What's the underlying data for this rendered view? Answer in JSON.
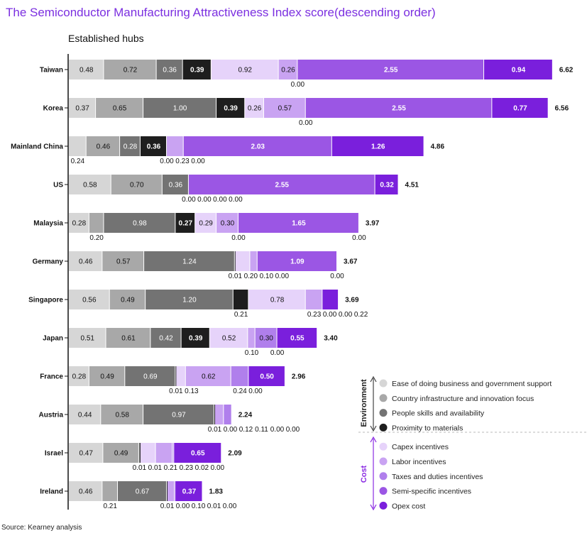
{
  "title": "The Semiconductor Manufacturing Attractiveness Index score(descending order)",
  "section_label": "Established hubs",
  "source": "Source: Kearney analysis",
  "legend": {
    "groups": [
      {
        "name": "Environment",
        "color": "#444444"
      },
      {
        "name": "Cost",
        "color": "#8A2BE2"
      }
    ]
  },
  "chart_data": {
    "type": "bar",
    "orientation": "horizontal",
    "stacked": true,
    "title": "The Semiconductor Manufacturing Attractiveness Index score(descending order)",
    "categories": [
      "Taiwan",
      "Korea",
      "Mainland China",
      "US",
      "Malaysia",
      "Germany",
      "Singapore",
      "Japan",
      "France",
      "Austria",
      "Israel",
      "Ireland"
    ],
    "series": [
      {
        "name": "Ease of doing business and government support",
        "group": "Environment",
        "color": "#D6D6D6",
        "values": [
          0.48,
          0.37,
          0.24,
          0.58,
          0.28,
          0.46,
          0.56,
          0.51,
          0.28,
          0.44,
          0.47,
          0.46
        ]
      },
      {
        "name": "Country infrastructure and innovation focus",
        "group": "Environment",
        "color": "#A8A8A8",
        "values": [
          0.72,
          0.65,
          0.46,
          0.7,
          0.2,
          0.57,
          0.49,
          0.61,
          0.49,
          0.58,
          0.49,
          0.21
        ]
      },
      {
        "name": "People skills and availability",
        "group": "Environment",
        "color": "#737373",
        "values": [
          0.36,
          1.0,
          0.28,
          0.36,
          0.98,
          1.24,
          1.2,
          0.42,
          0.69,
          0.97,
          0.01,
          0.67
        ]
      },
      {
        "name": "Proximity to materials",
        "group": "Environment",
        "color": "#1E1E1E",
        "values": [
          0.39,
          0.39,
          0.36,
          0.0,
          0.27,
          0.01,
          0.21,
          0.39,
          0.01,
          0.01,
          0.01,
          0.01
        ]
      },
      {
        "name": "Capex incentives",
        "group": "Cost",
        "color": "#E6D3FA",
        "values": [
          0.92,
          0.26,
          0.0,
          0.0,
          0.29,
          0.2,
          0.78,
          0.52,
          0.13,
          0.0,
          0.21,
          0.0
        ]
      },
      {
        "name": "Labor incentives",
        "group": "Cost",
        "color": "#C9A3F2",
        "values": [
          0.26,
          0.57,
          0.23,
          0.0,
          0.3,
          0.1,
          0.23,
          0.1,
          0.62,
          0.12,
          0.23,
          0.1
        ]
      },
      {
        "name": "Taxes and duties incentives",
        "group": "Cost",
        "color": "#B07FEC",
        "values": [
          0.0,
          0.0,
          0.0,
          0.0,
          0.0,
          0.0,
          0.0,
          0.3,
          0.24,
          0.11,
          0.02,
          0.01
        ]
      },
      {
        "name": "Semi-specific incentives",
        "group": "Cost",
        "color": "#9B56E4",
        "values": [
          2.55,
          2.55,
          2.03,
          2.55,
          1.65,
          1.09,
          0.0,
          0.0,
          0.0,
          0.0,
          0.0,
          0.0
        ]
      },
      {
        "name": "Opex cost",
        "group": "Cost",
        "color": "#7A1FDC",
        "values": [
          0.94,
          0.77,
          1.26,
          0.32,
          0.0,
          0.0,
          0.22,
          0.55,
          0.5,
          0.0,
          0.65,
          0.37
        ]
      }
    ],
    "totals": [
      6.62,
      6.56,
      4.86,
      4.51,
      3.97,
      3.67,
      3.69,
      3.4,
      2.96,
      2.24,
      2.09,
      1.83
    ],
    "xlim": [
      0,
      7
    ],
    "legend_position": "bottom-right"
  }
}
